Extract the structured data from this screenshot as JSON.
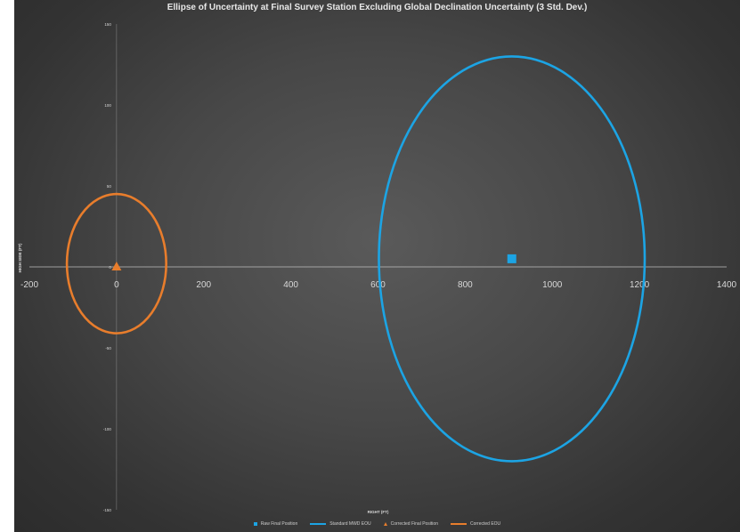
{
  "chart_data": {
    "type": "scatter",
    "title": "Ellipse of Uncertainty at Final Survey Station Excluding Global Declination Uncertainty (3 Std. Dev.)",
    "xlabel": "RIGHT (FT)",
    "ylabel": "HIGH SIDE (FT)",
    "xlim": [
      -200,
      1400
    ],
    "ylim": [
      -150,
      150
    ],
    "x_ticks": [
      "-200",
      "0",
      "200",
      "400",
      "600",
      "800",
      "1000",
      "1200",
      "1400"
    ],
    "y_ticks": [
      "150",
      "100",
      "50",
      "0",
      "-50",
      "-100",
      "-150"
    ],
    "grid": false,
    "legend_position": "bottom",
    "colors": {
      "raw": "#1ca4e4",
      "corrected": "#e87d2c",
      "axis": "#bfbfbf",
      "text": "#d8d8d8"
    },
    "series": [
      {
        "name": "Raw Final Position",
        "kind": "marker",
        "marker": "square",
        "color": "#1ca4e4",
        "points": [
          [
            907,
            5
          ]
        ]
      },
      {
        "name": "Standard MWD EOU",
        "kind": "ellipse",
        "color": "#1ca4e4",
        "center": [
          907,
          5
        ],
        "semi_axis_x": 305,
        "semi_axis_y": 125
      },
      {
        "name": "Corrected Final Position",
        "kind": "marker",
        "marker": "triangle",
        "color": "#e87d2c",
        "points": [
          [
            0,
            0
          ]
        ]
      },
      {
        "name": "Corrected EOU",
        "kind": "ellipse",
        "color": "#e87d2c",
        "center": [
          0,
          2
        ],
        "semi_axis_x": 114,
        "semi_axis_y": 43
      }
    ]
  }
}
